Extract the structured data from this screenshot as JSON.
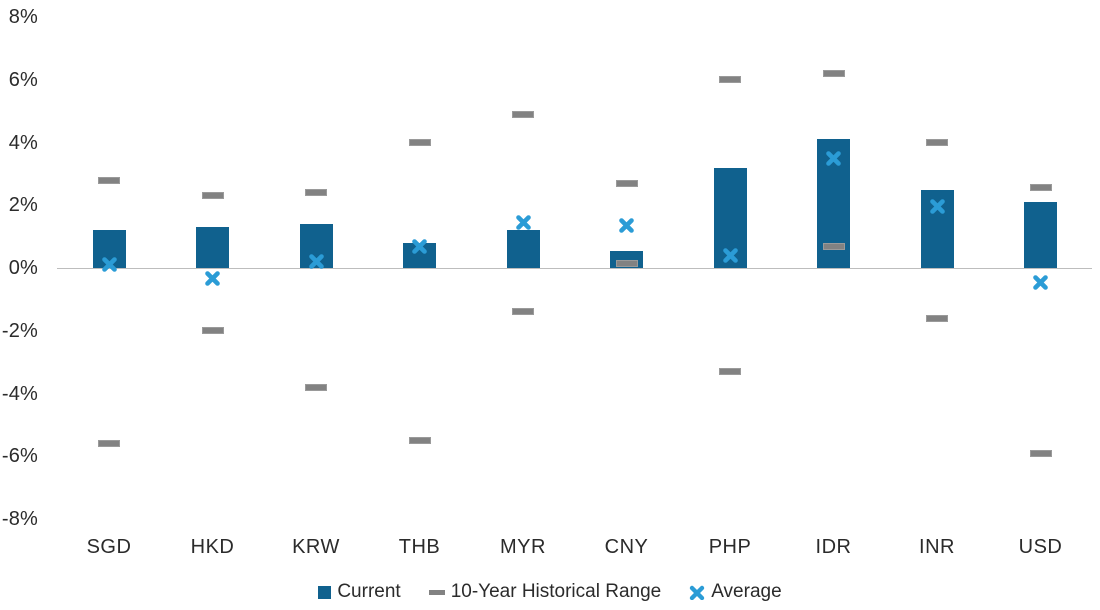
{
  "chart_data": {
    "type": "bar",
    "title": "",
    "xlabel": "",
    "ylabel": "",
    "categories": [
      "SGD",
      "HKD",
      "KRW",
      "THB",
      "MYR",
      "CNY",
      "PHP",
      "IDR",
      "INR",
      "USD"
    ],
    "series": [
      {
        "name": "Current",
        "type": "bar",
        "values": [
          1.2,
          1.3,
          1.4,
          0.8,
          1.2,
          0.55,
          3.2,
          4.1,
          2.5,
          2.1
        ]
      },
      {
        "name": "10-Year Historical Range",
        "type": "range",
        "high": [
          2.8,
          2.3,
          2.4,
          4.0,
          4.9,
          2.7,
          6.0,
          6.2,
          4.0,
          2.55
        ],
        "low": [
          -5.6,
          -2.0,
          -3.8,
          -5.5,
          -1.4,
          0.15,
          -3.3,
          0.7,
          -1.6,
          -5.9
        ]
      },
      {
        "name": "Average",
        "type": "marker",
        "values": [
          0.1,
          -0.35,
          0.2,
          0.7,
          1.45,
          1.35,
          0.4,
          3.5,
          1.95,
          -0.45
        ]
      }
    ],
    "ylim": [
      -8,
      8
    ],
    "ytick_values": [
      8,
      6,
      4,
      2,
      0,
      -2,
      -4,
      -6,
      -8
    ],
    "ytick_labels": [
      "8%",
      "6%",
      "4%",
      "2%",
      "0%",
      "-2%",
      "-4%",
      "-6%",
      "-8%"
    ],
    "grid": false,
    "legend_position": "bottom",
    "legend": {
      "current": "Current",
      "range": "10-Year Historical Range",
      "average": "Average"
    },
    "colors": {
      "current": "#10618e",
      "range": "#828282",
      "average": "#2b9cd6",
      "axis": "#bdbdbd",
      "text": "#2b2b2b"
    }
  }
}
